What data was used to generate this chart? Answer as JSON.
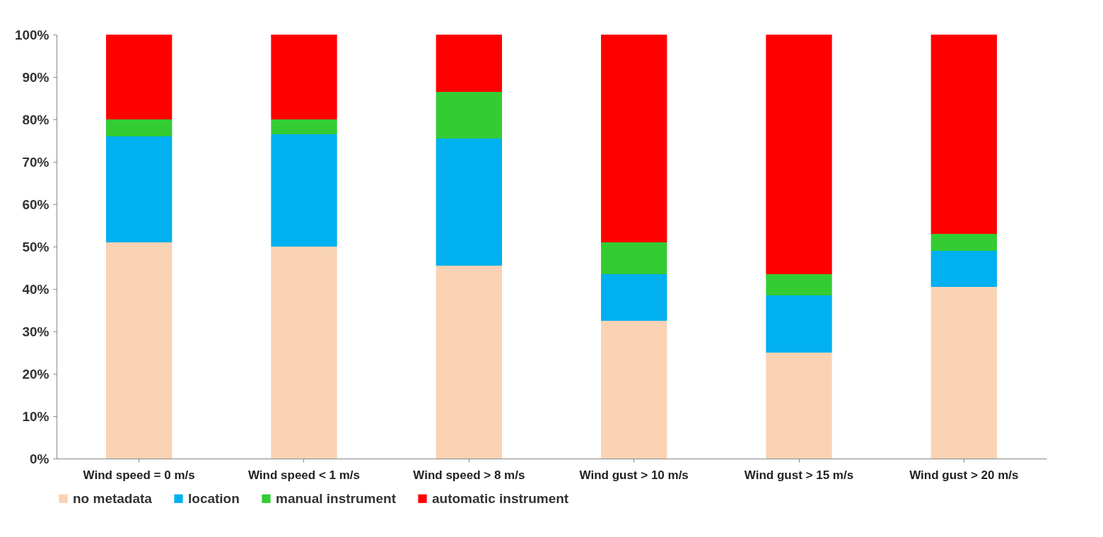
{
  "chart_data": {
    "type": "bar",
    "stacked": true,
    "categories": [
      "Wind speed = 0 m/s",
      "Wind speed < 1 m/s",
      "Wind speed > 8 m/s",
      "Wind gust > 10 m/s",
      "Wind gust > 15 m/s",
      "Wind gust > 20 m/s"
    ],
    "series": [
      {
        "name": "no metadata",
        "color": "#f9d3b4",
        "values": [
          51,
          50,
          45.5,
          32.5,
          25,
          40.5
        ]
      },
      {
        "name": "location",
        "color": "#00b0f0",
        "values": [
          25,
          26.5,
          30,
          11,
          13.5,
          8.5
        ]
      },
      {
        "name": "manual instrument",
        "color": "#33cc33",
        "values": [
          4,
          3.5,
          11,
          7.5,
          5,
          4
        ]
      },
      {
        "name": "automatic instrument",
        "color": "#ff0000",
        "values": [
          20,
          20,
          13.5,
          49,
          56.5,
          47
        ]
      }
    ],
    "ylim": [
      0,
      100
    ],
    "yticks": [
      {
        "value": 0,
        "label": "0%"
      },
      {
        "value": 10,
        "label": "10%"
      },
      {
        "value": 20,
        "label": "20%"
      },
      {
        "value": 30,
        "label": "30%"
      },
      {
        "value": 40,
        "label": "40%"
      },
      {
        "value": 50,
        "label": "50%"
      },
      {
        "value": 60,
        "label": "60%"
      },
      {
        "value": 70,
        "label": "70%"
      },
      {
        "value": 80,
        "label": "80%"
      },
      {
        "value": 90,
        "label": "90%"
      },
      {
        "value": 100,
        "label": "100%"
      }
    ],
    "legend": "bottom"
  }
}
